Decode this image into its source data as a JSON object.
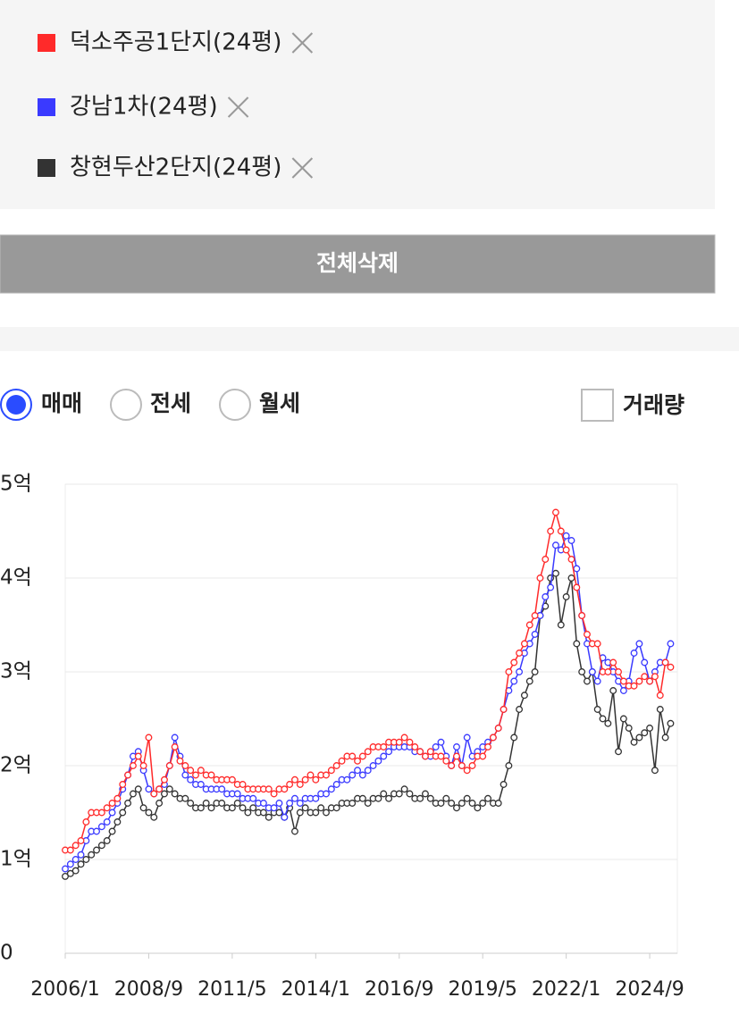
{
  "ui": {
    "delete_all": "전체삭제",
    "options": [
      "매매",
      "전세",
      "월세"
    ],
    "volume": "거래량"
  },
  "chart_data": {
    "type": "line",
    "grid": true,
    "x": [
      "2006/1",
      "2006/3",
      "2006/5",
      "2006/7",
      "2006/9",
      "2006/11",
      "2007/1",
      "2007/3",
      "2007/5",
      "2007/7",
      "2007/9",
      "2007/11",
      "2008/1",
      "2008/3",
      "2008/5",
      "2008/7",
      "2008/9",
      "2008/11",
      "2009/1",
      "2009/3",
      "2009/5",
      "2009/7",
      "2009/9",
      "2009/11",
      "2010/1",
      "2010/3",
      "2010/5",
      "2010/7",
      "2010/9",
      "2010/11",
      "2011/1",
      "2011/3",
      "2011/5",
      "2011/7",
      "2011/9",
      "2011/11",
      "2012/1",
      "2012/3",
      "2012/5",
      "2012/7",
      "2012/9",
      "2012/11",
      "2013/1",
      "2013/3",
      "2013/5",
      "2013/7",
      "2013/9",
      "2013/11",
      "2014/1",
      "2014/3",
      "2014/5",
      "2014/7",
      "2014/9",
      "2014/11",
      "2015/1",
      "2015/3",
      "2015/5",
      "2015/7",
      "2015/9",
      "2015/11",
      "2016/1",
      "2016/3",
      "2016/5",
      "2016/7",
      "2016/9",
      "2016/11",
      "2017/1",
      "2017/3",
      "2017/5",
      "2017/7",
      "2017/9",
      "2017/11",
      "2018/1",
      "2018/3",
      "2018/5",
      "2018/7",
      "2018/9",
      "2018/11",
      "2019/1",
      "2019/3",
      "2019/5",
      "2019/7",
      "2019/9",
      "2019/11",
      "2020/1",
      "2020/3",
      "2020/5",
      "2020/7",
      "2020/9",
      "2020/11",
      "2021/1",
      "2021/3",
      "2021/5",
      "2021/7",
      "2021/9",
      "2021/11",
      "2022/1",
      "2022/3",
      "2022/5",
      "2022/7",
      "2022/9",
      "2022/11",
      "2023/1",
      "2023/3",
      "2023/5",
      "2023/7",
      "2023/9",
      "2023/11",
      "2024/1",
      "2024/3",
      "2024/5",
      "2024/7",
      "2024/9",
      "2024/11",
      "2025/1",
      "2025/3",
      "2025/5"
    ],
    "xticks": [
      "2006/1",
      "2008/9",
      "2011/5",
      "2014/1",
      "2016/9",
      "2019/5",
      "2022/1",
      "2024/9"
    ],
    "ylim": [
      0,
      5
    ],
    "yticks": [
      0,
      {
        "value": 1,
        "label": "1억"
      },
      {
        "value": 2,
        "label": "2억"
      },
      {
        "value": 3,
        "label": "3억"
      },
      {
        "value": 4,
        "label": "4억"
      },
      {
        "value": 5,
        "label": "5억"
      }
    ],
    "series": [
      {
        "name": "덕소주공1단지(24평)",
        "color": "#ff2a2a",
        "values": [
          1.1,
          1.1,
          1.15,
          1.2,
          1.4,
          1.5,
          1.5,
          1.5,
          1.55,
          1.6,
          1.65,
          1.8,
          1.9,
          2.0,
          2.1,
          2.0,
          2.3,
          1.7,
          1.75,
          1.85,
          2.0,
          2.2,
          2.05,
          2.0,
          1.95,
          1.9,
          1.95,
          1.9,
          1.9,
          1.85,
          1.85,
          1.85,
          1.85,
          1.8,
          1.8,
          1.75,
          1.75,
          1.75,
          1.75,
          1.75,
          1.7,
          1.75,
          1.75,
          1.8,
          1.85,
          1.8,
          1.85,
          1.9,
          1.85,
          1.9,
          1.9,
          1.95,
          2.0,
          2.05,
          2.1,
          2.1,
          2.05,
          2.1,
          2.15,
          2.2,
          2.2,
          2.2,
          2.25,
          2.25,
          2.25,
          2.3,
          2.25,
          2.2,
          2.15,
          2.1,
          2.15,
          2.1,
          2.1,
          2.05,
          2.0,
          2.1,
          2.0,
          1.95,
          2.0,
          2.1,
          2.1,
          2.2,
          2.3,
          2.4,
          2.6,
          3.0,
          3.1,
          3.2,
          3.3,
          3.5,
          3.6,
          4.0,
          4.2,
          4.5,
          4.7,
          4.5,
          4.3,
          4.2,
          3.9,
          3.6,
          3.4,
          3.3,
          3.3,
          3.0,
          3.0,
          3.1,
          3.0,
          2.9,
          2.85,
          2.85,
          2.9,
          2.95,
          2.9,
          2.95,
          2.75,
          3.1,
          3.05
        ]
      },
      {
        "name": "강남1차(24평)",
        "color": "#3a3aff",
        "values": [
          0.9,
          0.95,
          1.0,
          1.05,
          1.2,
          1.3,
          1.3,
          1.35,
          1.4,
          1.5,
          1.6,
          1.75,
          1.9,
          2.1,
          2.15,
          1.95,
          1.75,
          1.7,
          1.75,
          1.8,
          2.0,
          2.3,
          2.1,
          1.9,
          1.85,
          1.8,
          1.8,
          1.75,
          1.75,
          1.75,
          1.75,
          1.7,
          1.7,
          1.7,
          1.65,
          1.65,
          1.65,
          1.6,
          1.6,
          1.55,
          1.55,
          1.6,
          1.45,
          1.6,
          1.65,
          1.6,
          1.65,
          1.65,
          1.65,
          1.7,
          1.7,
          1.75,
          1.8,
          1.85,
          1.85,
          1.9,
          1.95,
          1.9,
          1.95,
          2.0,
          2.05,
          2.1,
          2.15,
          2.2,
          2.2,
          2.2,
          2.2,
          2.15,
          2.15,
          2.1,
          2.1,
          2.2,
          2.25,
          2.1,
          2.0,
          2.2,
          2.0,
          2.3,
          2.1,
          2.15,
          2.2,
          2.25,
          2.3,
          2.4,
          2.6,
          2.8,
          2.9,
          3.0,
          3.2,
          3.3,
          3.4,
          3.6,
          3.8,
          3.9,
          4.35,
          4.3,
          4.45,
          4.4,
          4.1,
          3.6,
          3.3,
          3.0,
          2.9,
          3.15,
          3.1,
          3.0,
          2.9,
          2.8,
          2.9,
          3.2,
          3.3,
          3.1,
          2.9,
          3.0,
          3.1,
          3.1,
          3.3
        ]
      },
      {
        "name": "창현두산2단지(24평)",
        "color": "#333333",
        "values": [
          0.82,
          0.85,
          0.88,
          0.95,
          1.0,
          1.05,
          1.1,
          1.15,
          1.2,
          1.3,
          1.4,
          1.5,
          1.6,
          1.7,
          1.75,
          1.55,
          1.5,
          1.45,
          1.6,
          1.7,
          1.75,
          1.7,
          1.65,
          1.65,
          1.6,
          1.55,
          1.55,
          1.6,
          1.55,
          1.6,
          1.6,
          1.55,
          1.55,
          1.6,
          1.55,
          1.5,
          1.55,
          1.5,
          1.5,
          1.45,
          1.5,
          1.5,
          1.45,
          1.55,
          1.3,
          1.5,
          1.55,
          1.5,
          1.5,
          1.55,
          1.5,
          1.55,
          1.55,
          1.6,
          1.6,
          1.6,
          1.65,
          1.65,
          1.6,
          1.65,
          1.65,
          1.7,
          1.65,
          1.7,
          1.7,
          1.75,
          1.7,
          1.65,
          1.65,
          1.7,
          1.65,
          1.6,
          1.6,
          1.65,
          1.6,
          1.55,
          1.6,
          1.65,
          1.6,
          1.55,
          1.6,
          1.65,
          1.6,
          1.6,
          1.8,
          2.0,
          2.3,
          2.6,
          2.75,
          2.9,
          3.0,
          3.6,
          3.7,
          4.0,
          4.05,
          3.5,
          3.8,
          4.0,
          3.3,
          3.0,
          2.9,
          3.0,
          2.6,
          2.5,
          2.45,
          2.8,
          2.15,
          2.5,
          2.4,
          2.25,
          2.3,
          2.35,
          2.4,
          1.95,
          2.6,
          2.3,
          2.45
        ]
      }
    ]
  }
}
